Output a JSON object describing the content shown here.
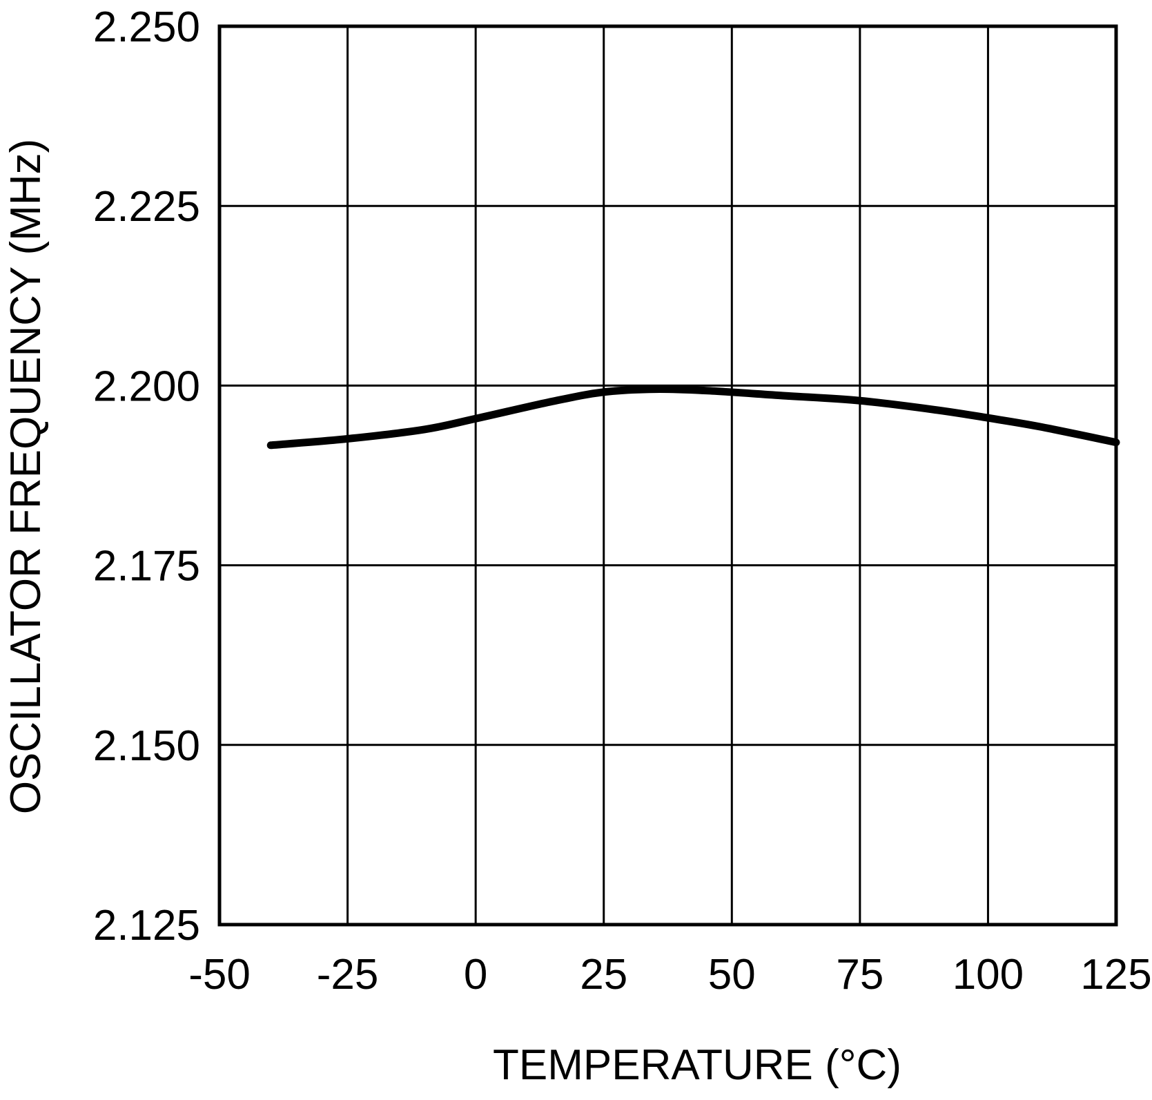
{
  "chart_data": {
    "type": "line",
    "title": "",
    "xlabel": "TEMPERATURE (°C)",
    "ylabel": "OSCILLATOR FREQUENCY (MHz)",
    "xlim": [
      -50,
      125
    ],
    "ylim": [
      2.125,
      2.25
    ],
    "x_ticks": [
      -50,
      -25,
      0,
      25,
      50,
      75,
      100,
      125
    ],
    "y_ticks": [
      2.125,
      2.15,
      2.175,
      2.2,
      2.225,
      2.25
    ],
    "x_tick_labels": [
      "-50",
      "-25",
      "0",
      "25",
      "50",
      "75",
      "100",
      "125"
    ],
    "y_tick_labels": [
      "2.125",
      "2.150",
      "2.175",
      "2.200",
      "2.225",
      "2.250"
    ],
    "grid": true,
    "line_color": "#000000",
    "series": [
      {
        "x": [
          -40,
          -25,
          -10,
          0,
          15,
          25,
          35,
          45,
          60,
          75,
          90,
          100,
          110,
          125
        ],
        "y": [
          2.1917,
          2.1926,
          2.1939,
          2.1954,
          2.1978,
          2.1991,
          2.1995,
          2.1993,
          2.1986,
          2.1979,
          2.1966,
          2.1955,
          2.1943,
          2.1921
        ]
      }
    ]
  }
}
